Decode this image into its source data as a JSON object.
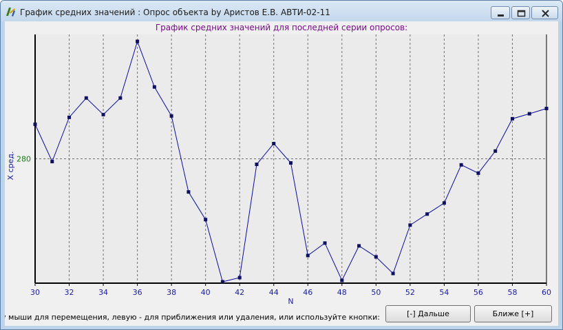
{
  "window": {
    "title": "График средних значений : Опрос объекта by Аристов Е.В. АВТИ-02-11"
  },
  "chart_data": {
    "type": "line",
    "title": "График средних значений для последней серии опросов:",
    "xlabel": "N",
    "ylabel": "X сред.",
    "x": [
      30,
      31,
      32,
      33,
      34,
      35,
      36,
      37,
      38,
      39,
      40,
      41,
      42,
      43,
      44,
      45,
      46,
      47,
      48,
      49,
      50,
      51,
      52,
      53,
      54,
      55,
      56,
      57,
      58,
      59,
      60
    ],
    "y": [
      281.25,
      279.9,
      281.5,
      282.2,
      281.6,
      282.2,
      284.25,
      282.6,
      281.55,
      278.8,
      277.8,
      275.55,
      275.7,
      279.8,
      280.55,
      279.85,
      276.5,
      276.95,
      275.6,
      276.85,
      276.45,
      275.85,
      277.6,
      278.0,
      278.4,
      279.78,
      279.48,
      280.28,
      281.45,
      281.63,
      281.82
    ],
    "xlim": [
      30,
      60
    ],
    "ylim": [
      275.5,
      284.5
    ],
    "xticks": [
      "30",
      "32",
      "34",
      "36",
      "38",
      "40",
      "42",
      "44",
      "46",
      "48",
      "50",
      "52",
      "54",
      "56",
      "58",
      "60"
    ],
    "yticks": [
      {
        "value": 280,
        "label": "280"
      }
    ],
    "grid": true,
    "colors": {
      "line": "#0a0aa0",
      "marker": "#101060",
      "title": "#7a0a8c",
      "ytick": "#1a7a1a",
      "axis_label": "#1a1aa0",
      "plot_bg": "#ebebeb"
    }
  },
  "status": {
    "hint": "Используйте правую кнопку мыши для перемещения, левую - для приближения или удаления, или используйте кнопки:"
  },
  "buttons": {
    "farther": "[-] Дальше",
    "closer": "Ближе [+]"
  }
}
